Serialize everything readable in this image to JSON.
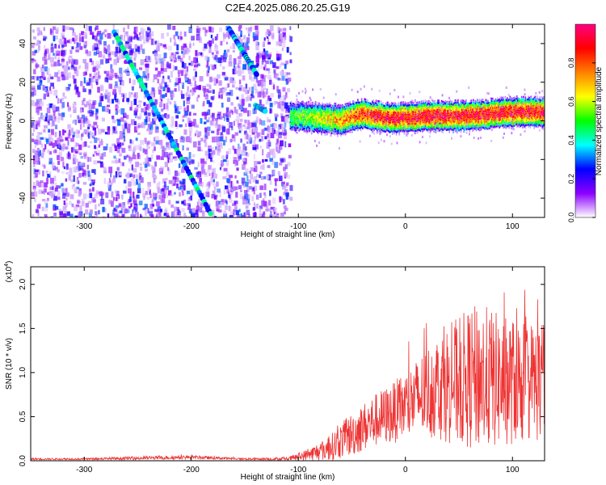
{
  "title": "C2E4.2025.086.20.25.G19",
  "chart_data": [
    {
      "type": "heatmap",
      "name": "spectrogram",
      "xlabel": "Height of straight line (km)",
      "ylabel": "Frequency (Hz)",
      "xlim": [
        -350,
        130
      ],
      "ylim": [
        -50,
        50
      ],
      "xticks": [
        -300,
        -200,
        -100,
        0,
        100
      ],
      "yticks": [
        -40,
        -20,
        0,
        20,
        40
      ],
      "noise_region_x": [
        -350,
        -108
      ],
      "sloped_traces": [
        {
          "x": [
            -272,
            -182
          ],
          "y": [
            46,
            -48
          ]
        },
        {
          "x": [
            -165,
            -139
          ],
          "y": [
            48,
            24
          ]
        },
        {
          "x": [
            -140,
            -131
          ],
          "y": [
            8,
            5
          ]
        }
      ],
      "main_trace": {
        "x": [
          -108,
          -80,
          -60,
          -40,
          -20,
          0,
          20,
          40,
          60,
          80,
          100,
          130
        ],
        "y": [
          3,
          2,
          1,
          4,
          2,
          2,
          3,
          3,
          3,
          4,
          5,
          5
        ]
      }
    },
    {
      "type": "colorbar",
      "name": "amplitude-colorbar",
      "label": "Normalized spectral amplitude",
      "range": [
        0.0,
        1.0
      ],
      "ticks": [
        "0.0",
        "0.2",
        "0.4",
        "0.6",
        "0.8"
      ],
      "colors": [
        "#ffffff",
        "#8c00ff",
        "#0000ff",
        "#00ffff",
        "#00ff00",
        "#ffff00",
        "#ff8000",
        "#ff0000",
        "#ff0080"
      ]
    },
    {
      "type": "line",
      "name": "snr-line",
      "xlabel": "Height of straight line (km)",
      "ylabel": "SNR (10 * v/v)",
      "y_scale_label": "(x10",
      "y_scale_exp": "4",
      "xlim": [
        -350,
        130
      ],
      "ylim": [
        0,
        2.2
      ],
      "xticks": [
        -300,
        -200,
        -100,
        0,
        100
      ],
      "yticks": [
        "0.0",
        "0.5",
        "1.0",
        "1.5",
        "2.0"
      ],
      "series_color": "#ee3333",
      "envelope": {
        "x": [
          -350,
          -300,
          -250,
          -200,
          -150,
          -110,
          -90,
          -70,
          -50,
          -30,
          -10,
          10,
          30,
          50,
          70,
          90,
          110,
          130
        ],
        "center": [
          0.02,
          0.02,
          0.03,
          0.04,
          0.02,
          0.02,
          0.07,
          0.15,
          0.3,
          0.45,
          0.55,
          0.7,
          0.85,
          0.9,
          0.95,
          0.9,
          0.9,
          0.9
        ],
        "amplitude": [
          0.01,
          0.01,
          0.02,
          0.02,
          0.01,
          0.02,
          0.07,
          0.15,
          0.25,
          0.3,
          0.35,
          0.45,
          0.6,
          0.75,
          0.85,
          0.75,
          0.7,
          0.7
        ]
      }
    }
  ]
}
